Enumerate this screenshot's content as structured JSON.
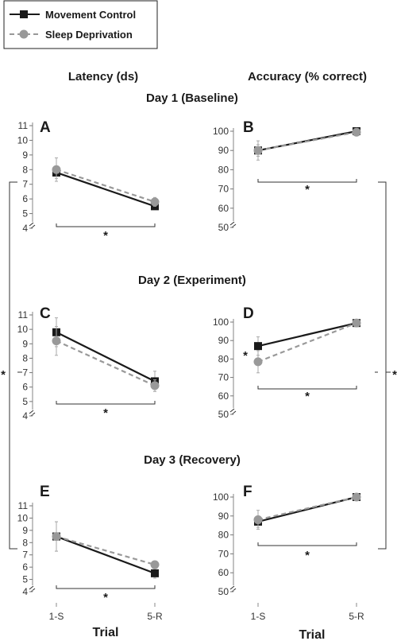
{
  "legend": {
    "items": [
      {
        "label": "Movement Control",
        "color": "#1a1a1a",
        "marker": "square",
        "dash": false
      },
      {
        "label": "Sleep Deprivation",
        "color": "#999999",
        "marker": "circle",
        "dash": true
      }
    ]
  },
  "column_titles": {
    "latency": "Latency (ds)",
    "accuracy": "Accuracy (% correct)"
  },
  "day_titles": [
    "Day 1 (Baseline)",
    "Day 2 (Experiment)",
    "Day 3 (Recovery)"
  ],
  "x_axis_title": "Trial",
  "significance_marker": "*",
  "chart_data": [
    {
      "panel": "A",
      "type": "line",
      "measure": "latency",
      "day": 1,
      "categories": [
        "1-S",
        "5-R"
      ],
      "series": [
        {
          "name": "Movement Control",
          "values": [
            7.8,
            5.5
          ],
          "errors": [
            0.4,
            0.2
          ]
        },
        {
          "name": "Sleep Deprivation",
          "values": [
            8.0,
            5.8
          ],
          "errors": [
            0.8,
            0.3
          ]
        }
      ],
      "yticks": [
        4,
        5,
        6,
        7,
        8,
        9,
        10,
        11
      ],
      "ylim": [
        4,
        11.5
      ],
      "axis_break": true
    },
    {
      "panel": "B",
      "type": "line",
      "measure": "accuracy",
      "day": 1,
      "categories": [
        "1-S",
        "5-R"
      ],
      "series": [
        {
          "name": "Movement Control",
          "values": [
            90,
            100
          ],
          "errors": [
            3,
            1
          ]
        },
        {
          "name": "Sleep Deprivation",
          "values": [
            90,
            99.5
          ],
          "errors": [
            5,
            1
          ]
        }
      ],
      "yticks": [
        50,
        60,
        70,
        80,
        90,
        100
      ],
      "ylim": [
        45,
        104
      ],
      "axis_break": true
    },
    {
      "panel": "C",
      "type": "line",
      "measure": "latency",
      "day": 2,
      "categories": [
        "1-S",
        "5-R"
      ],
      "series": [
        {
          "name": "Movement Control",
          "values": [
            9.8,
            6.4
          ],
          "errors": [
            1.0,
            0.7
          ]
        },
        {
          "name": "Sleep Deprivation",
          "values": [
            9.2,
            6.1
          ],
          "errors": [
            1.0,
            0.4
          ]
        }
      ],
      "yticks": [
        4,
        5,
        6,
        7,
        8,
        9,
        10,
        11
      ],
      "ylim": [
        4,
        11.5
      ],
      "axis_break": true
    },
    {
      "panel": "D",
      "type": "line",
      "measure": "accuracy",
      "day": 2,
      "categories": [
        "1-S",
        "5-R"
      ],
      "series": [
        {
          "name": "Movement Control",
          "values": [
            87,
            99.5
          ],
          "errors": [
            5,
            1
          ]
        },
        {
          "name": "Sleep Deprivation",
          "values": [
            78.5,
            99.5
          ],
          "errors": [
            6,
            1
          ]
        }
      ],
      "yticks": [
        50,
        60,
        70,
        80,
        90,
        100
      ],
      "ylim": [
        45,
        104
      ],
      "axis_break": true
    },
    {
      "panel": "E",
      "type": "line",
      "measure": "latency",
      "day": 3,
      "categories": [
        "1-S",
        "5-R"
      ],
      "series": [
        {
          "name": "Movement Control",
          "values": [
            8.5,
            5.5
          ],
          "errors": [
            1.2,
            0.4
          ]
        },
        {
          "name": "Sleep Deprivation",
          "values": [
            8.5,
            6.2
          ],
          "errors": [
            1.2,
            0.3
          ]
        }
      ],
      "yticks": [
        4,
        5,
        6,
        7,
        8,
        9,
        10,
        11
      ],
      "ylim": [
        4,
        11.5
      ],
      "axis_break": true
    },
    {
      "panel": "F",
      "type": "line",
      "measure": "accuracy",
      "day": 3,
      "categories": [
        "1-S",
        "5-R"
      ],
      "series": [
        {
          "name": "Movement Control",
          "values": [
            87,
            100
          ],
          "errors": [
            3,
            1
          ]
        },
        {
          "name": "Sleep Deprivation",
          "values": [
            88,
            100
          ],
          "errors": [
            5,
            1
          ]
        }
      ],
      "yticks": [
        50,
        60,
        70,
        80,
        90,
        100
      ],
      "ylim": [
        45,
        104
      ],
      "axis_break": true
    }
  ]
}
